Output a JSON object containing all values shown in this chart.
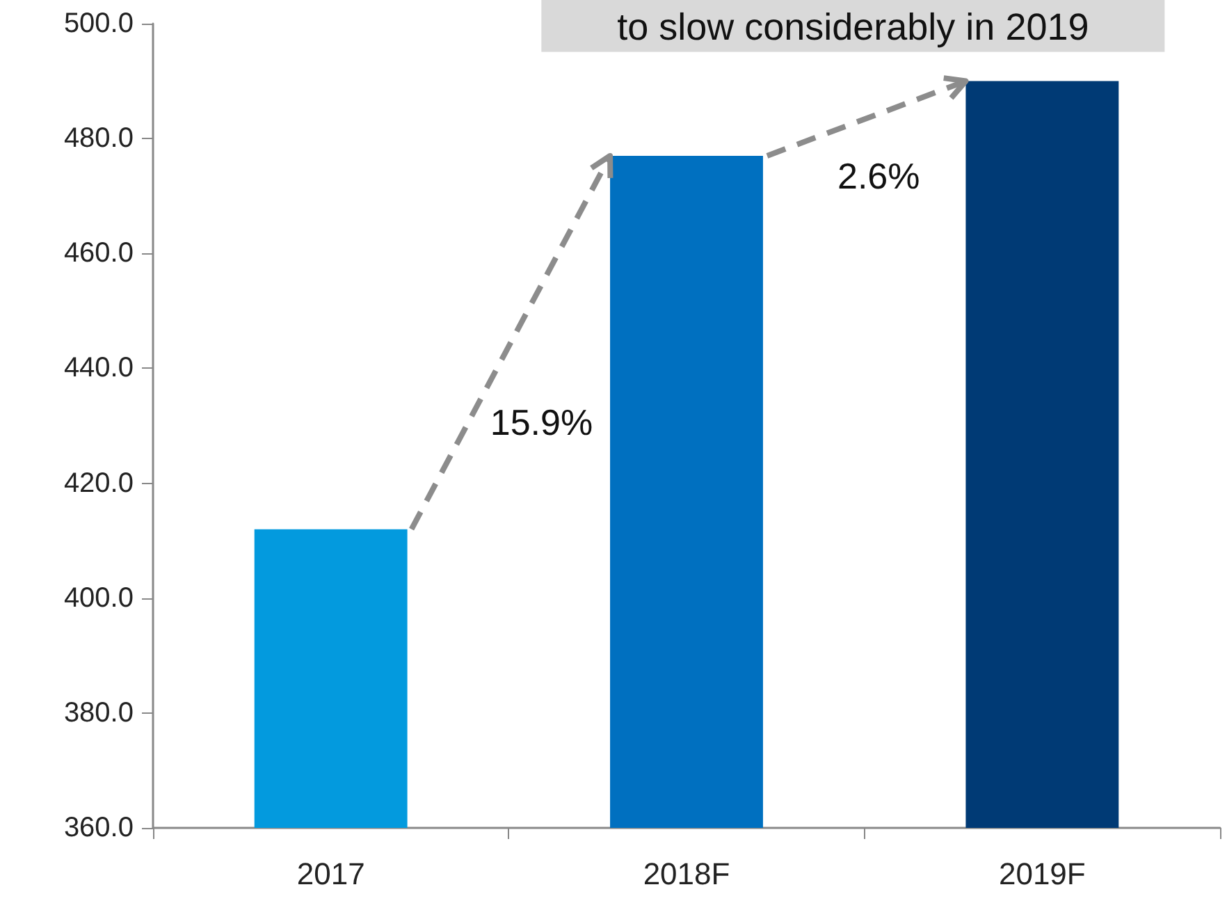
{
  "chart_data": {
    "type": "bar",
    "categories": [
      "2017",
      "2018F",
      "2019F"
    ],
    "values": [
      412,
      477,
      490
    ],
    "colors": [
      "#039ade",
      "#0070c0",
      "#003a75"
    ],
    "ylim": [
      360,
      500
    ],
    "yticks": [
      {
        "value": 360,
        "label": "360.0"
      },
      {
        "value": 380,
        "label": "380.0"
      },
      {
        "value": 400,
        "label": "400.0"
      },
      {
        "value": 420,
        "label": "420.0"
      },
      {
        "value": 440,
        "label": "440.0"
      },
      {
        "value": 460,
        "label": "460.0"
      },
      {
        "value": 480,
        "label": "480.0"
      },
      {
        "value": 500,
        "label": "500.0"
      }
    ],
    "grid": false,
    "annotations": [
      "15.9%",
      "2.6%",
      {
        "text": "to slow considerably in 2019",
        "x": "2019F",
        "y": 490
      }
    ]
  }
}
